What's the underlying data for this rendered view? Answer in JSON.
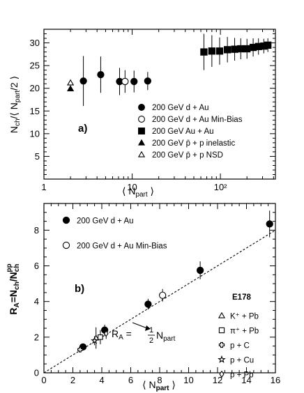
{
  "chart_data": [
    {
      "type": "scatter",
      "panel_label": "a)",
      "xscale": "log",
      "xlim": [
        1,
        420
      ],
      "ylim": [
        0,
        33
      ],
      "xlabel_main": "⟨ N",
      "xlabel_sub": "part",
      "xlabel_close": " ⟩",
      "ylabel_text": "N_ch/⟨ N_part/2 ⟩",
      "x_ticks": [
        {
          "v": 1,
          "label": "1"
        },
        {
          "v": 10,
          "label": "10"
        },
        {
          "v": 100,
          "label": "10²"
        }
      ],
      "y_ticks": [
        {
          "v": 5,
          "label": "5"
        },
        {
          "v": 10,
          "label": "10"
        },
        {
          "v": 15,
          "label": "15"
        },
        {
          "v": 20,
          "label": "20"
        },
        {
          "v": 25,
          "label": "25"
        },
        {
          "v": 30,
          "label": "30"
        }
      ],
      "series": [
        {
          "name": "200 GeV d + Au",
          "marker": "circle-filled",
          "points": [
            [
              2.8,
              21.6,
              5.5
            ],
            [
              4.4,
              23.0,
              4.0
            ],
            [
              7.2,
              21.5,
              3.0
            ],
            [
              10.5,
              21.5,
              2.4
            ],
            [
              15.0,
              21.6,
              2.0
            ]
          ]
        },
        {
          "name": "200 GeV d + Au  Min-Bias",
          "marker": "circle-open",
          "points": [
            [
              8.3,
              21.5,
              2.5
            ]
          ]
        },
        {
          "name": "200 GeV Au + Au",
          "marker": "square-filled",
          "points": [
            [
              65,
              28.0,
              4.0
            ],
            [
              80,
              28.2,
              3.5
            ],
            [
              98,
              28.2,
              3.0
            ],
            [
              120,
              28.5,
              2.8
            ],
            [
              145,
              28.6,
              2.5
            ],
            [
              170,
              28.7,
              2.3
            ],
            [
              200,
              28.7,
              2.2
            ],
            [
              235,
              29.0,
              2.0
            ],
            [
              270,
              29.2,
              1.8
            ],
            [
              310,
              29.3,
              1.6
            ],
            [
              345,
              29.5,
              1.5
            ]
          ]
        },
        {
          "name": "200 GeV p̄ + p inelastic",
          "marker": "triangle-filled",
          "points": [
            [
              2.0,
              19.9,
              0
            ]
          ]
        },
        {
          "name": "200 GeV p̄ + p NSD",
          "marker": "triangle-open",
          "points": [
            [
              2.0,
              21.2,
              0
            ]
          ]
        }
      ]
    },
    {
      "type": "scatter",
      "panel_label": "b)",
      "xlim": [
        0,
        16
      ],
      "ylim": [
        0,
        9.5
      ],
      "xlabel_main": "⟨ N",
      "xlabel_sub": "part",
      "xlabel_close": " ⟩",
      "ylabel_text": "R_A=N_ch/N_ch^pp",
      "x_ticks": [
        {
          "v": 0,
          "label": "0"
        },
        {
          "v": 2,
          "label": "2"
        },
        {
          "v": 4,
          "label": "4"
        },
        {
          "v": 6,
          "label": "6"
        },
        {
          "v": 8,
          "label": "8"
        },
        {
          "v": 10,
          "label": "10"
        },
        {
          "v": 12,
          "label": "12"
        },
        {
          "v": 14,
          "label": "14"
        },
        {
          "v": 16,
          "label": "16"
        }
      ],
      "y_ticks": [
        {
          "v": 0,
          "label": "0"
        },
        {
          "v": 2,
          "label": "2"
        },
        {
          "v": 4,
          "label": "4"
        },
        {
          "v": 6,
          "label": "6"
        },
        {
          "v": 8,
          "label": "8"
        }
      ],
      "line": {
        "label": "R_A = 1/2 N_part",
        "slope": 0.5,
        "x": [
          0,
          16
        ]
      },
      "e178_title": "E178",
      "series": [
        {
          "name": "200 GeV d + Au",
          "marker": "circle-filled",
          "points": [
            [
              2.7,
              1.45,
              0.15
            ],
            [
              4.2,
              2.4,
              0.3
            ],
            [
              7.2,
              3.85,
              0.3
            ],
            [
              10.8,
              5.75,
              0.5
            ],
            [
              15.6,
              8.35,
              0.75
            ]
          ]
        },
        {
          "name": "200 GeV d + Au  Min-Bias",
          "marker": "circle-open",
          "points": [
            [
              8.2,
              4.35,
              0.35
            ]
          ]
        },
        {
          "name": "K⁺ + Pb",
          "marker": "triangle-open",
          "points": [
            [
              3.6,
              1.95,
              0.6
            ]
          ]
        },
        {
          "name": "π⁺ + Pb",
          "marker": "square-open",
          "points": [
            [
              3.9,
              2.0,
              0.4
            ]
          ]
        },
        {
          "name": "p + C",
          "marker": "cross-open",
          "points": [
            [
              2.5,
              1.3,
              0.15
            ]
          ]
        },
        {
          "name": "p + Cu",
          "marker": "star-open",
          "points": [
            [
              3.5,
              1.8,
              0.25
            ]
          ]
        },
        {
          "name": "p + Pb",
          "marker": "diamond-open",
          "points": [
            [
              4.3,
              2.2,
              0.3
            ]
          ]
        }
      ]
    }
  ]
}
